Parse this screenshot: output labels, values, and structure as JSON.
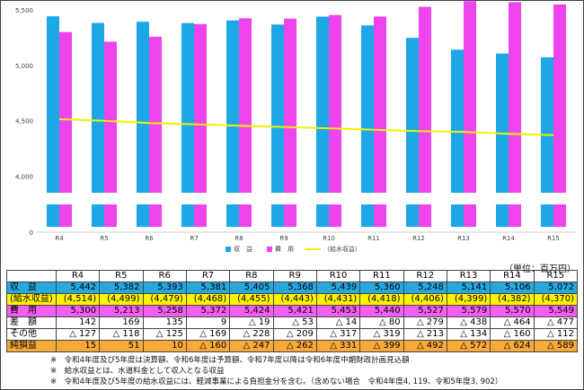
{
  "chart_data": {
    "type": "bar",
    "categories": [
      "R4",
      "R5",
      "R6",
      "R7",
      "R8",
      "R9",
      "R10",
      "R11",
      "R12",
      "R13",
      "R14",
      "R15"
    ],
    "series": [
      {
        "name": "収　益",
        "type": "bar",
        "color": "#1EA7E6",
        "values": [
          5442,
          5382,
          5393,
          5381,
          5405,
          5368,
          5439,
          5360,
          5248,
          5141,
          5106,
          5072
        ]
      },
      {
        "name": "費　用",
        "type": "bar",
        "color": "#EE44EE",
        "values": [
          5300,
          5213,
          5258,
          5372,
          5424,
          5421,
          5453,
          5440,
          5527,
          5579,
          5570,
          5549
        ]
      },
      {
        "name": "（給水収益）",
        "type": "line",
        "color": "#F2F200",
        "values": [
          4514,
          4499,
          4479,
          4468,
          4455,
          4443,
          4431,
          4418,
          4406,
          4399,
          4382,
          4370
        ]
      }
    ],
    "y_ticks": [
      "5,500",
      "5,000",
      "4,500",
      "4,000",
      "0"
    ],
    "y_tick_values": [
      5500,
      5000,
      4500,
      4000
    ],
    "ylim": [
      3850,
      5500
    ],
    "axis_break": true,
    "grid": false,
    "legend_position": "bottom"
  },
  "table": {
    "unit": "（単位：百万円）",
    "header": [
      "",
      "R4",
      "R5",
      "R6",
      "R7",
      "R8",
      "R9",
      "R10",
      "R11",
      "R12",
      "R13",
      "R14",
      "R15"
    ],
    "rows": [
      {
        "label": "収　益",
        "bg": "#29A8E0",
        "cells": [
          "5,442",
          "5,382",
          "5,393",
          "5,381",
          "5,405",
          "5,368",
          "5,439",
          "5,360",
          "5,248",
          "5,141",
          "5,106",
          "5,072"
        ]
      },
      {
        "label": "(給水収益)",
        "bg": "#FFF200",
        "cells": [
          "(4,514)",
          "(4,499)",
          "(4,479)",
          "(4,468)",
          "(4,455)",
          "(4,443)",
          "(4,431)",
          "(4,418)",
          "(4,406)",
          "(4,399)",
          "(4,382)",
          "(4,370)"
        ]
      },
      {
        "label": "費　用",
        "bg": "#F25EF2",
        "cells": [
          "5,300",
          "5,213",
          "5,258",
          "5,372",
          "5,424",
          "5,421",
          "5,453",
          "5,440",
          "5,527",
          "5,579",
          "5,570",
          "5,549"
        ]
      },
      {
        "label": "差　額",
        "bg": "#FFFFFF",
        "cells": [
          "142",
          "169",
          "135",
          "9",
          "△ 19",
          "△ 53",
          "△ 14",
          "△ 80",
          "△ 279",
          "△ 438",
          "△ 464",
          "△ 477"
        ]
      },
      {
        "label": "その他",
        "bg": "#FFFFFF",
        "cells": [
          "△ 127",
          "△ 118",
          "△ 125",
          "△ 169",
          "△ 228",
          "△ 209",
          "△ 317",
          "△ 319",
          "△ 213",
          "△ 134",
          "△ 160",
          "△ 112"
        ]
      },
      {
        "label": "純損益",
        "bg": "#F7A93A",
        "cells": [
          "15",
          "51",
          "10",
          "△ 160",
          "△ 247",
          "△ 262",
          "△ 331",
          "△ 399",
          "△ 492",
          "△ 572",
          "△ 624",
          "△ 589"
        ]
      }
    ]
  },
  "notes": [
    "※　令和4年度及び5年度は決算額、令和6年度は予算額、令和7年度以降は令和6年度中期財政計画見込額",
    "※　給水収益とは、水道料金として収入となる収益",
    "※　令和4年度及び5年度の給水収益には、軽減事業による負担金分を含む。（含めない場合　令和4年度4, 119、令和5年度3, 902）"
  ]
}
